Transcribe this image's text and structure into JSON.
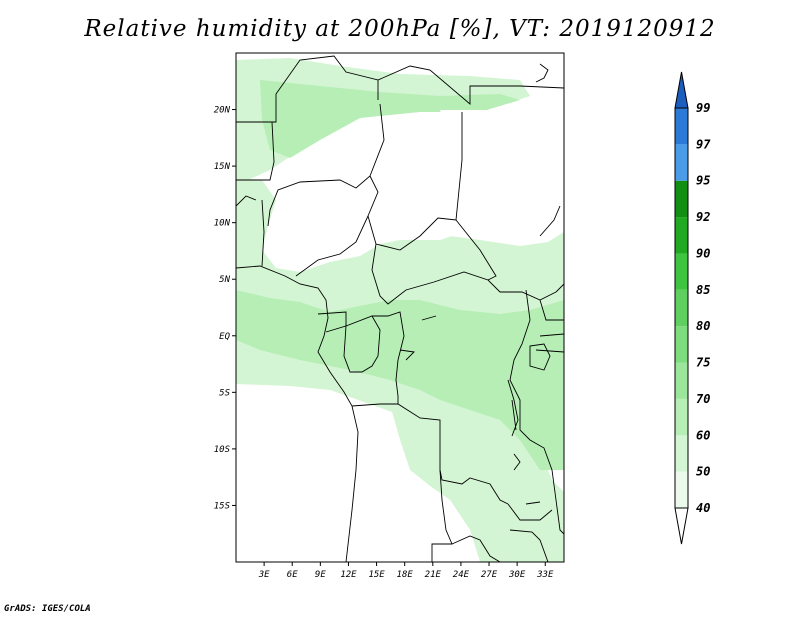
{
  "title": "Relative humidity at 200hPa [%], VT: 2019120912",
  "footer": "GrADS: IGES/COLA",
  "map": {
    "lon_range": [
      0,
      35
    ],
    "lat_range": [
      -20,
      25
    ],
    "lat_ticks": [
      {
        "label": "20N",
        "value": 20
      },
      {
        "label": "15N",
        "value": 15
      },
      {
        "label": "10N",
        "value": 10
      },
      {
        "label": "5N",
        "value": 5
      },
      {
        "label": "EQ",
        "value": 0
      },
      {
        "label": "5S",
        "value": -5
      },
      {
        "label": "10S",
        "value": -10
      },
      {
        "label": "15S",
        "value": -15
      }
    ],
    "lon_ticks": [
      {
        "label": "3E",
        "value": 3
      },
      {
        "label": "6E",
        "value": 6
      },
      {
        "label": "9E",
        "value": 9
      },
      {
        "label": "12E",
        "value": 12
      },
      {
        "label": "15E",
        "value": 15
      },
      {
        "label": "18E",
        "value": 18
      },
      {
        "label": "21E",
        "value": 21
      },
      {
        "label": "24E",
        "value": 24
      },
      {
        "label": "27E",
        "value": 27
      },
      {
        "label": "30E",
        "value": 30
      },
      {
        "label": "33E",
        "value": 33
      }
    ]
  },
  "colorbar": {
    "levels": [
      "40",
      "50",
      "60",
      "70",
      "75",
      "80",
      "85",
      "90",
      "92",
      "95",
      "97",
      "99"
    ],
    "colors": [
      "#ebfaeb",
      "#d3f5d3",
      "#b6eeb6",
      "#9be69b",
      "#7ddc7d",
      "#5fd05f",
      "#3fc43f",
      "#22a922",
      "#128f12",
      "#4a9be8",
      "#2b7ad8",
      "#1b5ec0"
    ]
  }
}
